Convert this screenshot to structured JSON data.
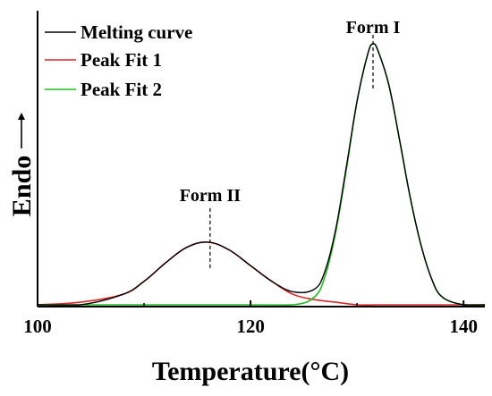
{
  "chart_data": {
    "type": "line",
    "xlabel": "Temperature(°C)",
    "ylabel": "Endo",
    "xlim": [
      100,
      142
    ],
    "x_ticks": [
      "100",
      "120",
      "140"
    ],
    "y_ticks_shown": false,
    "legend_placement": "top-left",
    "series": [
      {
        "name": "Melting curve",
        "color": "#000000",
        "x": [
          100,
          104,
          108,
          110,
          112,
          114,
          116,
          118,
          120,
          122,
          124,
          126,
          127,
          128,
          129,
          130,
          131,
          131.5,
          132,
          133,
          134,
          135,
          136,
          137,
          138,
          140,
          142
        ],
        "y": [
          0.0,
          0.0,
          0.04,
          0.09,
          0.16,
          0.22,
          0.24,
          0.21,
          0.15,
          0.09,
          0.05,
          0.06,
          0.13,
          0.29,
          0.53,
          0.78,
          0.96,
          1.0,
          0.97,
          0.84,
          0.63,
          0.41,
          0.23,
          0.1,
          0.03,
          0.0,
          0.0
        ]
      },
      {
        "name": "Peak Fit 1",
        "color": "#d62728",
        "x": [
          100,
          104,
          108,
          110,
          112,
          114,
          116,
          118,
          120,
          122,
          124,
          126,
          128,
          130,
          132,
          136,
          142
        ],
        "y": [
          0.0,
          0.01,
          0.04,
          0.09,
          0.16,
          0.22,
          0.24,
          0.21,
          0.15,
          0.09,
          0.04,
          0.02,
          0.01,
          0.0,
          0.0,
          0.0,
          0.0
        ]
      },
      {
        "name": "Peak Fit 2",
        "color": "#22bb22",
        "x": [
          100,
          120,
          124,
          126,
          127,
          128,
          129,
          130,
          131,
          131.5,
          132,
          133,
          134,
          135,
          136,
          137,
          138,
          140,
          142
        ],
        "y": [
          0.0,
          0.0,
          0.0,
          0.03,
          0.11,
          0.28,
          0.52,
          0.78,
          0.96,
          1.0,
          0.97,
          0.84,
          0.63,
          0.41,
          0.23,
          0.1,
          0.03,
          0.0,
          0.0
        ]
      }
    ],
    "annotations": [
      {
        "text": "Form II",
        "x": 116.2,
        "peak_y": 0.24
      },
      {
        "text": "Form I",
        "x": 131.5,
        "peak_y": 1.0
      }
    ]
  }
}
